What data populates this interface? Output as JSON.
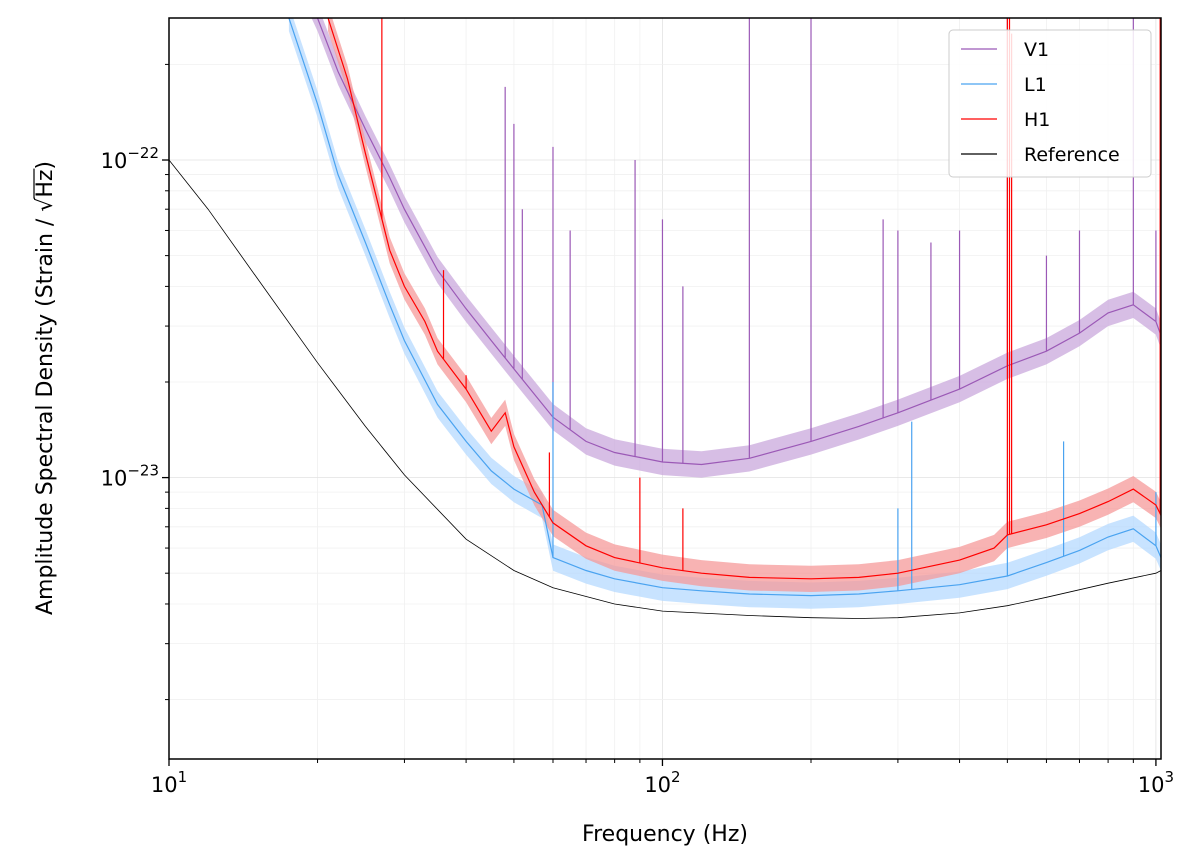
{
  "chart_data": {
    "type": "line",
    "xscale": "log",
    "yscale": "log",
    "xlabel": "Frequency (Hz)",
    "ylabel_prefix": "Amplitude Spectral Density (Strain / ",
    "ylabel_radical": "√",
    "ylabel_radicand": "Hz",
    "ylabel_suffix": ")",
    "xlim": [
      10,
      1024
    ],
    "ylim": [
      1.3e-24,
      2.8e-22
    ],
    "x_ticks": [
      {
        "value": 10,
        "base": "10",
        "exp": "1"
      },
      {
        "value": 100,
        "base": "10",
        "exp": "2"
      },
      {
        "value": 1000,
        "base": "10",
        "exp": "3"
      }
    ],
    "y_ticks": [
      {
        "value": 1e-23,
        "base": "10",
        "exp": "−23"
      },
      {
        "value": 1e-22,
        "base": "10",
        "exp": "−22"
      }
    ],
    "grid": true,
    "legend_position": "top-right",
    "series": [
      {
        "name": "V1",
        "color": "#9b59b6",
        "band_color": "#c9a8dc",
        "band_factor": 1.1,
        "x": [
          18,
          20,
          22,
          25,
          28,
          30,
          35,
          40,
          45,
          50,
          60,
          70,
          80,
          100,
          120,
          150,
          200,
          250,
          300,
          400,
          500,
          600,
          700,
          800,
          900,
          1000,
          1024
        ],
        "y": [
          4e-22,
          2.8e-22,
          1.9e-22,
          1.25e-22,
          8.8e-23,
          7e-23,
          4.5e-23,
          3.4e-23,
          2.7e-23,
          2.2e-23,
          1.55e-23,
          1.3e-23,
          1.2e-23,
          1.12e-23,
          1.1e-23,
          1.15e-23,
          1.3e-23,
          1.45e-23,
          1.6e-23,
          1.9e-23,
          2.25e-23,
          2.5e-23,
          2.85e-23,
          3.3e-23,
          3.5e-23,
          3.1e-23,
          2.8e-23
        ],
        "lines": [
          {
            "f": 48,
            "top": 1.7e-22
          },
          {
            "f": 50,
            "top": 1.3e-22
          },
          {
            "f": 52,
            "top": 7e-23
          },
          {
            "f": 60,
            "top": 1.1e-22
          },
          {
            "f": 65,
            "top": 6e-23
          },
          {
            "f": 88,
            "top": 1e-22
          },
          {
            "f": 100,
            "top": 6.5e-23
          },
          {
            "f": 110,
            "top": 4e-23
          },
          {
            "f": 150,
            "top": 2.8e-22
          },
          {
            "f": 200,
            "top": 2.8e-22
          },
          {
            "f": 280,
            "top": 6.5e-23
          },
          {
            "f": 300,
            "top": 6e-23
          },
          {
            "f": 350,
            "top": 5.5e-23
          },
          {
            "f": 400,
            "top": 6e-23
          },
          {
            "f": 500,
            "top": 2.8e-22
          },
          {
            "f": 600,
            "top": 5e-23
          },
          {
            "f": 700,
            "top": 6e-23
          },
          {
            "f": 900,
            "top": 2.8e-22
          },
          {
            "f": 1000,
            "top": 6e-23
          }
        ]
      },
      {
        "name": "L1",
        "color": "#4aa3f0",
        "band_color": "#b5d9ff",
        "band_factor": 1.1,
        "x": [
          17.5,
          20,
          22,
          25,
          28,
          30,
          35,
          40,
          45,
          50,
          57,
          60,
          70,
          80,
          100,
          120,
          150,
          200,
          250,
          300,
          400,
          500,
          600,
          700,
          800,
          900,
          1000,
          1024
        ],
        "y": [
          2.8e-22,
          1.5e-22,
          9e-23,
          5.5e-23,
          3.5e-23,
          2.7e-23,
          1.7e-23,
          1.3e-23,
          1.05e-23,
          9.2e-24,
          8.2e-24,
          5.6e-24,
          5.1e-24,
          4.8e-24,
          4.5e-24,
          4.4e-24,
          4.3e-24,
          4.25e-24,
          4.3e-24,
          4.4e-24,
          4.6e-24,
          4.9e-24,
          5.4e-24,
          5.9e-24,
          6.5e-24,
          6.9e-24,
          6.1e-24,
          5.6e-24
        ],
        "lines": [
          {
            "f": 60,
            "top": 2e-23
          },
          {
            "f": 300,
            "top": 8e-24
          },
          {
            "f": 320,
            "top": 1.5e-23
          },
          {
            "f": 500,
            "top": 1e-23
          },
          {
            "f": 650,
            "top": 1.3e-23
          },
          {
            "f": 1000,
            "top": 9e-24
          }
        ]
      },
      {
        "name": "H1",
        "color": "#ff0000",
        "band_color": "#f59a9a",
        "band_factor": 1.1,
        "x": [
          21,
          23,
          25,
          28,
          30,
          33,
          35,
          40,
          45,
          48,
          50,
          55,
          60,
          70,
          80,
          100,
          120,
          150,
          200,
          250,
          300,
          400,
          470,
          500,
          600,
          700,
          800,
          900,
          1000,
          1024
        ],
        "y": [
          2.8e-22,
          1.8e-22,
          1.05e-22,
          5.2e-23,
          4e-23,
          3.1e-23,
          2.5e-23,
          1.9e-23,
          1.4e-23,
          1.6e-23,
          1.25e-23,
          9e-24,
          7.2e-24,
          6.1e-24,
          5.6e-24,
          5.2e-24,
          5e-24,
          4.85e-24,
          4.8e-24,
          4.85e-24,
          5e-24,
          5.5e-24,
          6e-24,
          6.6e-24,
          7.1e-24,
          7.7e-24,
          8.4e-24,
          9.2e-24,
          8.2e-24,
          7.6e-24
        ],
        "lines": [
          {
            "f": 27,
            "top": 2.8e-22
          },
          {
            "f": 36,
            "top": 4.5e-23
          },
          {
            "f": 40,
            "top": 2.1e-23
          },
          {
            "f": 59,
            "top": 1.2e-23
          },
          {
            "f": 90,
            "top": 1e-23
          },
          {
            "f": 110,
            "top": 8e-24
          },
          {
            "f": 500,
            "top": 2.8e-22
          },
          {
            "f": 505,
            "top": 2.8e-22
          },
          {
            "f": 510,
            "top": 2.5e-22
          },
          {
            "f": 1020,
            "top": 2.8e-22
          }
        ]
      },
      {
        "name": "Reference",
        "color": "#000000",
        "x": [
          10,
          12,
          15,
          20,
          25,
          30,
          40,
          50,
          60,
          80,
          100,
          150,
          200,
          250,
          300,
          400,
          500,
          600,
          800,
          1000,
          1024
        ],
        "y": [
          1e-22,
          7e-23,
          4.3e-23,
          2.3e-23,
          1.45e-23,
          1.02e-23,
          6.4e-24,
          5.1e-24,
          4.5e-24,
          4e-24,
          3.8e-24,
          3.68e-24,
          3.62e-24,
          3.6e-24,
          3.62e-24,
          3.75e-24,
          3.95e-24,
          4.2e-24,
          4.65e-24,
          5e-24,
          5.1e-24
        ]
      }
    ]
  }
}
